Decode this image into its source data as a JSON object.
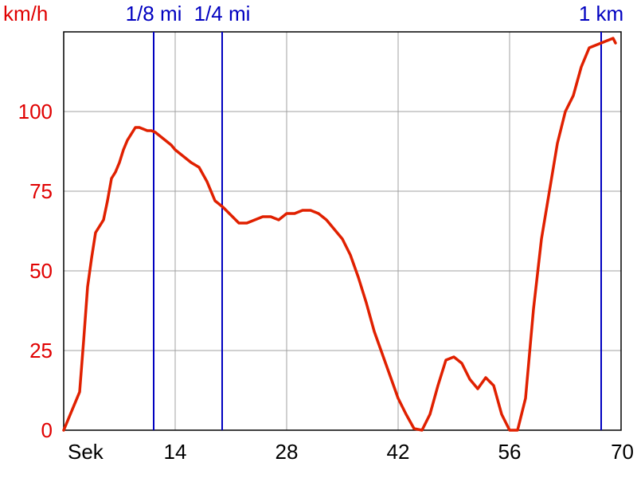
{
  "chart_data": {
    "type": "line",
    "ylabel": "km/h",
    "xlabel": "Sek",
    "xlim": [
      0,
      70
    ],
    "ylim": [
      0,
      125
    ],
    "x_ticks": [
      14,
      28,
      42,
      56,
      70
    ],
    "y_ticks": [
      0,
      25,
      50,
      75,
      100
    ],
    "grid": true,
    "colors": {
      "line": "#e02000",
      "markers": "#0000c0",
      "grid": "#a0a0a0",
      "axis_text_y": "#e00000"
    },
    "markers": [
      {
        "label": "1/8 mi",
        "x": 11.3
      },
      {
        "label": "1/4 mi",
        "x": 19.9
      },
      {
        "label": "1 km",
        "x": 67.5
      }
    ],
    "series": [
      {
        "x": [
          0,
          1,
          2,
          2.5,
          3,
          3.5,
          4,
          4.5,
          5,
          5.5,
          6,
          6.5,
          7,
          7.5,
          8,
          8.5,
          9,
          9.5,
          10,
          10.5,
          11,
          11.5,
          12,
          12.5,
          13,
          13.5,
          14,
          15,
          16,
          17,
          18,
          19,
          20,
          21,
          22,
          23,
          24,
          25,
          26,
          27,
          28,
          29,
          30,
          31,
          32,
          33,
          34,
          35,
          36,
          37,
          38,
          39,
          40,
          41,
          42,
          43,
          44,
          45,
          46,
          47,
          48,
          49,
          50,
          51,
          52,
          53,
          54,
          55,
          56,
          57,
          58,
          59,
          60,
          61,
          62,
          63,
          64,
          65,
          66,
          67,
          68,
          69,
          69.3
        ],
        "values": [
          0,
          6,
          12,
          28,
          45,
          54,
          62,
          64,
          66,
          72,
          79,
          81,
          84,
          88,
          91,
          93,
          95,
          95,
          94.5,
          94,
          94,
          93.5,
          92.5,
          91.5,
          90.5,
          89.5,
          88,
          86,
          84,
          82.5,
          78,
          72,
          70,
          67.5,
          65,
          65,
          66,
          67,
          67,
          66,
          68,
          68,
          69,
          69,
          68,
          66,
          63,
          60,
          55,
          48,
          40,
          31,
          24,
          17,
          10,
          5,
          0.5,
          0,
          5,
          14,
          22,
          23,
          21,
          16,
          13,
          16.5,
          14,
          5,
          0,
          0,
          10,
          38,
          60,
          75,
          90,
          100,
          105,
          114,
          120,
          121,
          122,
          123,
          121.5
        ]
      }
    ]
  }
}
